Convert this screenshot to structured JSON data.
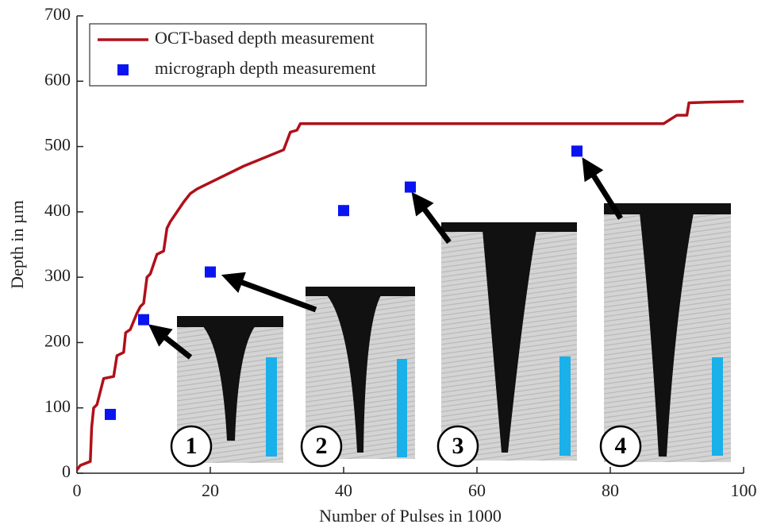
{
  "chart_data": {
    "type": "line",
    "x_label": "Number of Pulses in 1000",
    "y_label": "Depth in µm",
    "xlim": [
      0,
      100
    ],
    "xticks": [
      0,
      20,
      40,
      60,
      80,
      100
    ],
    "ylim": [
      0,
      700
    ],
    "yticks": [
      0,
      100,
      200,
      300,
      400,
      500,
      600,
      700
    ],
    "legend": "upper left",
    "series": [
      {
        "name": "OCT-based depth measurement",
        "color": "#b0101a",
        "type": "line",
        "x": [
          0,
          0.5,
          2,
          2.2,
          2.5,
          3,
          4,
          5.5,
          6,
          7,
          7.3,
          8,
          9,
          9.5,
          10,
          10.5,
          11,
          11.5,
          12,
          13,
          13.5,
          14,
          15,
          16,
          17,
          18,
          20,
          25,
          31,
          32,
          33,
          33.5,
          40,
          60,
          80,
          88,
          90,
          91.5,
          91.8,
          95,
          100
        ],
        "values": [
          5,
          12,
          18,
          70,
          100,
          105,
          145,
          148,
          180,
          185,
          215,
          220,
          245,
          255,
          260,
          300,
          305,
          320,
          335,
          340,
          375,
          385,
          400,
          415,
          428,
          435,
          445,
          470,
          495,
          522,
          525,
          535,
          535,
          535,
          535,
          535,
          548,
          548,
          567,
          568,
          569
        ]
      },
      {
        "name": "micrograph depth measurement",
        "color": "#0a14f0",
        "type": "scatter",
        "x": [
          5,
          10,
          20,
          40,
          50,
          75
        ],
        "values": [
          90,
          235,
          308,
          402,
          438,
          493
        ]
      }
    ],
    "annotations": [
      "1",
      "2",
      "3",
      "4"
    ]
  }
}
